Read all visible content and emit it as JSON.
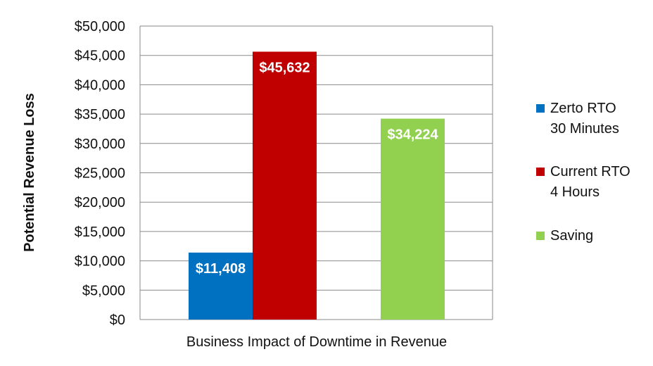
{
  "chart_data": {
    "type": "bar",
    "xlabel": "Business Impact of Downtime in Revenue",
    "ylabel": "Potential Revenue Loss",
    "ylim": [
      0,
      50000
    ],
    "yticks": [
      "$0",
      "$5,000",
      "$10,000",
      "$15,000",
      "$20,000",
      "$25,000",
      "$30,000",
      "$35,000",
      "$40,000",
      "$45,000",
      "$50,000"
    ],
    "grid": true,
    "legend_position": "right",
    "series": [
      {
        "name_lines": [
          "Zerto RTO",
          "30 Minutes"
        ],
        "value": 11408,
        "label": "$11,408",
        "color": "#0070C0"
      },
      {
        "name_lines": [
          "Current RTO",
          "4 Hours"
        ],
        "value": 45632,
        "label": "$45,632",
        "color": "#C00000"
      },
      {
        "name_lines": [
          "Saving"
        ],
        "value": 34224,
        "label": "$34,224",
        "color": "#92D050"
      }
    ]
  }
}
